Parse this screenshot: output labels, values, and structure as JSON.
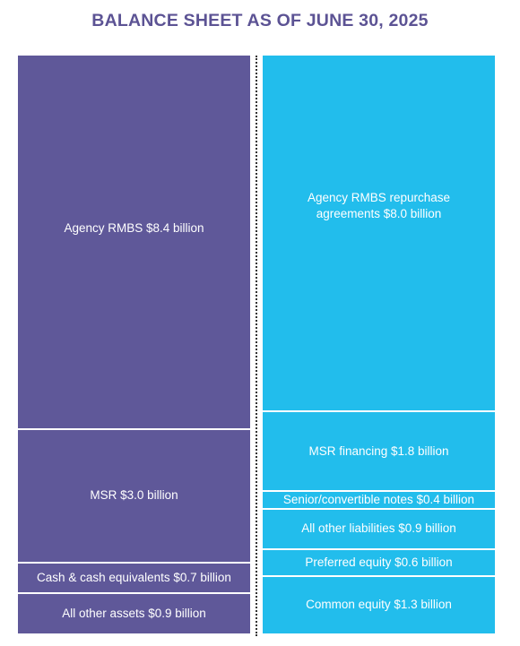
{
  "title": "BALANCE SHEET AS OF JUNE 30, 2025",
  "colors": {
    "assets": "#5f5899",
    "liabilities": "#22bdec",
    "title": "#5c5394"
  },
  "chart_data": {
    "type": "stacked-bar",
    "title": "BALANCE SHEET AS OF JUNE 30, 2025",
    "unit": "billion",
    "series": [
      {
        "name": "",
        "segments": [
          {
            "label": "Agency RMBS $8.4 billion",
            "value": 8.4
          },
          {
            "label": "MSR $3.0 billion",
            "value": 3.0
          },
          {
            "label": "Cash & cash equivalents $0.7 billion",
            "value": 0.7
          },
          {
            "label": "All other assets $0.9 billion",
            "value": 0.9
          }
        ]
      },
      {
        "name": "",
        "segments": [
          {
            "label": "Agency RMBS repurchase agreements $8.0 billion",
            "value": 8.0
          },
          {
            "label": "MSR financing $1.8 billion",
            "value": 1.8
          },
          {
            "label": "Senior/convertible notes $0.4 billion",
            "value": 0.4
          },
          {
            "label": "All other liabilities $0.9 billion",
            "value": 0.9
          },
          {
            "label": "Preferred equity $0.6 billion",
            "value": 0.6
          },
          {
            "label": "Common equity $1.3 billion",
            "value": 1.3
          }
        ]
      }
    ]
  }
}
